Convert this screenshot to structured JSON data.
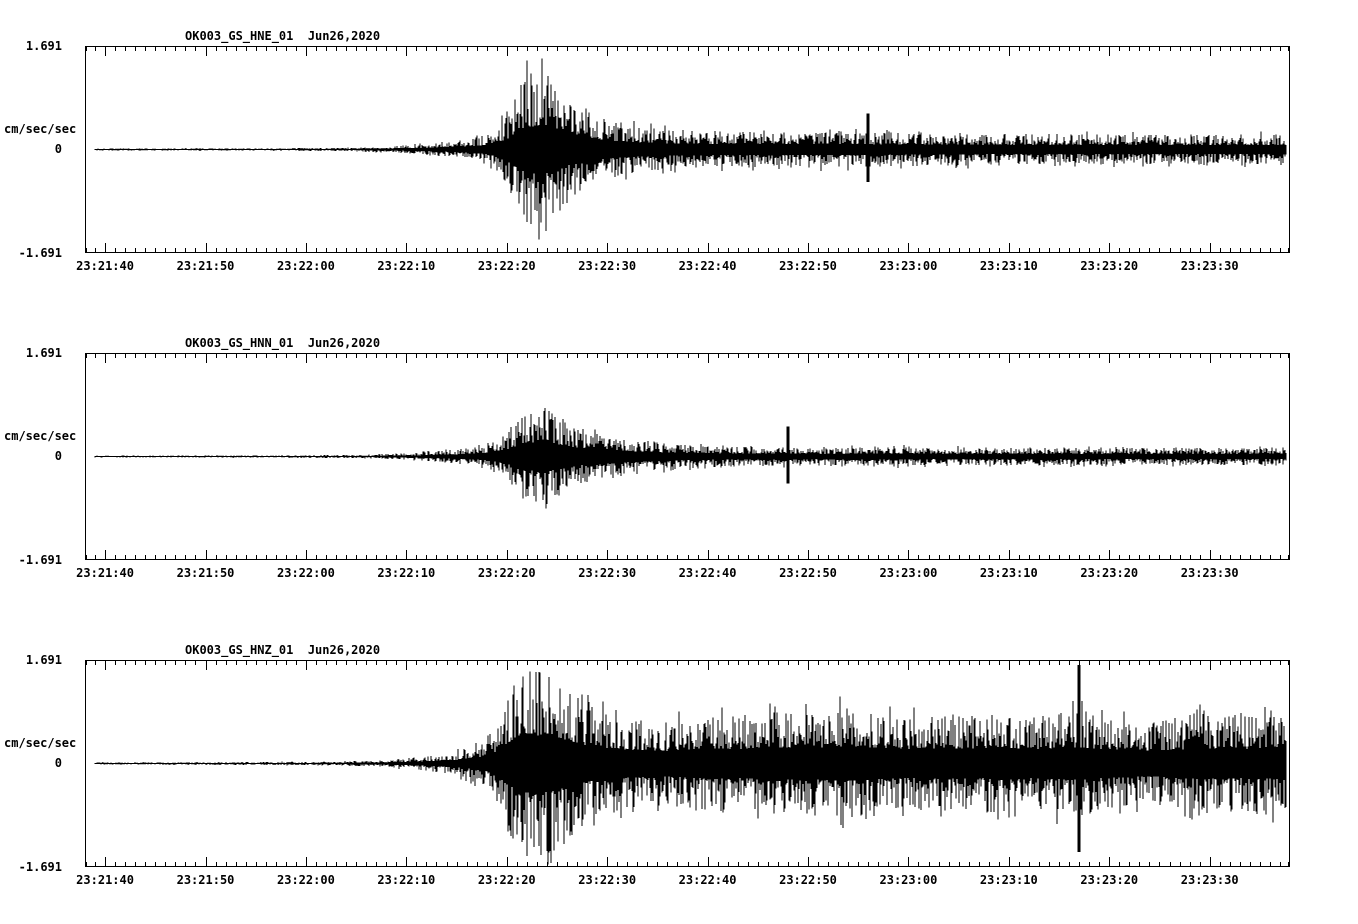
{
  "page": {
    "background": "#ffffff",
    "trace_color": "#000000"
  },
  "chart_data": [
    {
      "type": "line",
      "kind": "seismogram",
      "title": "OK003_GS_HNE_01  Jun26,2020",
      "station": "OK003_GS_HNE_01",
      "date": "Jun26,2020",
      "ylabel": "cm/sec/sec",
      "y_ticks": [
        "1.691",
        "0",
        "-1.691"
      ],
      "ylim": [
        -1.691,
        1.691
      ],
      "x_tick_labels": [
        "23:21:40",
        "23:21:50",
        "23:22:00",
        "23:22:10",
        "23:22:20",
        "23:22:30",
        "23:22:40",
        "23:22:50",
        "23:23:00",
        "23:23:10",
        "23:23:20",
        "23:23:30"
      ],
      "time_domain_seconds": [
        0,
        120
      ],
      "tick_times": [
        2,
        12,
        22,
        32,
        42,
        52,
        62,
        72,
        82,
        92,
        102,
        112
      ],
      "seed": 7,
      "envelope": [
        [
          0,
          0.018
        ],
        [
          20,
          0.022
        ],
        [
          26,
          0.03
        ],
        [
          30,
          0.05
        ],
        [
          34,
          0.09
        ],
        [
          38,
          0.16
        ],
        [
          40,
          0.25
        ],
        [
          42,
          0.55
        ],
        [
          43,
          1.0
        ],
        [
          44,
          1.3
        ],
        [
          45,
          1.25
        ],
        [
          46,
          1.3
        ],
        [
          47,
          1.1
        ],
        [
          48,
          0.9
        ],
        [
          50,
          0.65
        ],
        [
          52,
          0.5
        ],
        [
          55,
          0.4
        ],
        [
          58,
          0.34
        ],
        [
          62,
          0.32
        ],
        [
          68,
          0.3
        ],
        [
          75,
          0.3
        ],
        [
          82,
          0.28
        ],
        [
          90,
          0.26
        ],
        [
          100,
          0.26
        ],
        [
          110,
          0.24
        ],
        [
          120,
          0.26
        ]
      ],
      "spikes": [
        [
          78,
          0.6
        ]
      ]
    },
    {
      "type": "line",
      "kind": "seismogram",
      "title": "OK003_GS_HNN_01  Jun26,2020",
      "station": "OK003_GS_HNN_01",
      "date": "Jun26,2020",
      "ylabel": "cm/sec/sec",
      "y_ticks": [
        "1.691",
        "0",
        "-1.691"
      ],
      "ylim": [
        -1.691,
        1.691
      ],
      "x_tick_labels": [
        "23:21:40",
        "23:21:50",
        "23:22:00",
        "23:22:10",
        "23:22:20",
        "23:22:30",
        "23:22:40",
        "23:22:50",
        "23:23:00",
        "23:23:10",
        "23:23:20",
        "23:23:30"
      ],
      "time_domain_seconds": [
        0,
        120
      ],
      "tick_times": [
        2,
        12,
        22,
        32,
        42,
        52,
        62,
        72,
        82,
        92,
        102,
        112
      ],
      "seed": 13,
      "envelope": [
        [
          0,
          0.015
        ],
        [
          20,
          0.02
        ],
        [
          28,
          0.03
        ],
        [
          33,
          0.06
        ],
        [
          37,
          0.12
        ],
        [
          40,
          0.2
        ],
        [
          42,
          0.4
        ],
        [
          43,
          0.6
        ],
        [
          44,
          0.8
        ],
        [
          45,
          0.75
        ],
        [
          46,
          0.85
        ],
        [
          47,
          0.7
        ],
        [
          48,
          0.55
        ],
        [
          50,
          0.45
        ],
        [
          52,
          0.38
        ],
        [
          55,
          0.28
        ],
        [
          58,
          0.22
        ],
        [
          62,
          0.18
        ],
        [
          68,
          0.16
        ],
        [
          75,
          0.15
        ],
        [
          80,
          0.17
        ],
        [
          85,
          0.15
        ],
        [
          95,
          0.15
        ],
        [
          105,
          0.14
        ],
        [
          120,
          0.15
        ]
      ],
      "spikes": [
        [
          70,
          0.5
        ]
      ]
    },
    {
      "type": "line",
      "kind": "seismogram",
      "title": "OK003_GS_HNZ_01  Jun26,2020",
      "station": "OK003_GS_HNZ_01",
      "date": "Jun26,2020",
      "ylabel": "cm/sec/sec",
      "y_ticks": [
        "1.691",
        "0",
        "-1.691"
      ],
      "ylim": [
        -1.691,
        1.691
      ],
      "x_tick_labels": [
        "23:21:40",
        "23:21:50",
        "23:22:00",
        "23:22:10",
        "23:22:20",
        "23:22:30",
        "23:22:40",
        "23:22:50",
        "23:23:00",
        "23:23:10",
        "23:23:20",
        "23:23:30"
      ],
      "time_domain_seconds": [
        0,
        120
      ],
      "tick_times": [
        2,
        12,
        22,
        32,
        42,
        52,
        62,
        72,
        82,
        92,
        102,
        112
      ],
      "seed": 42,
      "envelope": [
        [
          0,
          0.02
        ],
        [
          20,
          0.025
        ],
        [
          26,
          0.035
        ],
        [
          30,
          0.06
        ],
        [
          34,
          0.12
        ],
        [
          37,
          0.2
        ],
        [
          40,
          0.4
        ],
        [
          41,
          0.7
        ],
        [
          42,
          1.1
        ],
        [
          43,
          1.5
        ],
        [
          44,
          1.6
        ],
        [
          45,
          1.55
        ],
        [
          46,
          1.6
        ],
        [
          47,
          1.5
        ],
        [
          48,
          1.3
        ],
        [
          50,
          1.0
        ],
        [
          52,
          0.85
        ],
        [
          55,
          0.75
        ],
        [
          58,
          0.7
        ],
        [
          62,
          0.85
        ],
        [
          65,
          0.8
        ],
        [
          68,
          0.9
        ],
        [
          72,
          0.85
        ],
        [
          75,
          0.95
        ],
        [
          78,
          0.9
        ],
        [
          82,
          0.8
        ],
        [
          85,
          0.85
        ],
        [
          88,
          0.8
        ],
        [
          92,
          0.85
        ],
        [
          95,
          0.8
        ],
        [
          99,
          0.9
        ],
        [
          102,
          0.75
        ],
        [
          105,
          0.7
        ],
        [
          108,
          0.75
        ],
        [
          112,
          0.85
        ],
        [
          116,
          0.8
        ],
        [
          120,
          0.85
        ]
      ],
      "spikes": [
        [
          99,
          1.65
        ]
      ]
    }
  ]
}
